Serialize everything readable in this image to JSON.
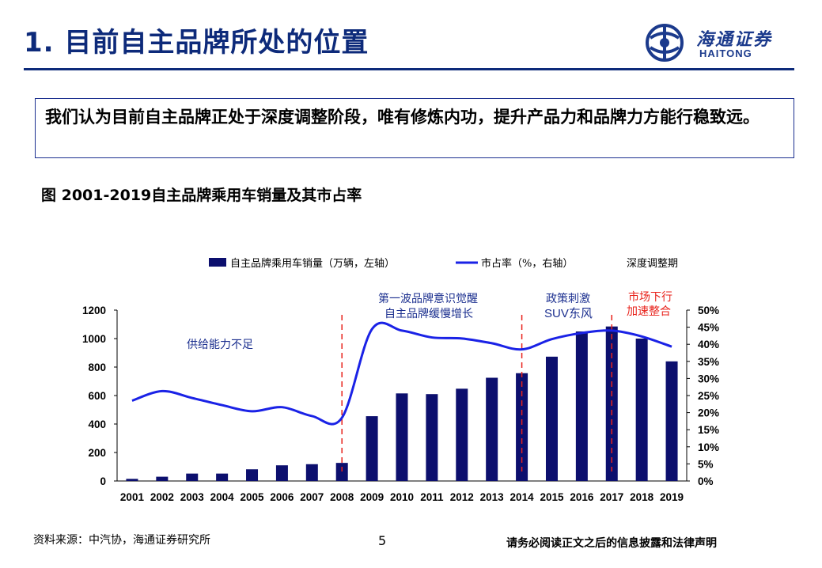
{
  "header": {
    "title": "1. 目前自主品牌所处的位置",
    "logo_text": "海通证券",
    "logo_en": "HAITONG"
  },
  "summary": "我们认为目前自主品牌正处于深度调整阶段，唯有修炼内功，提升产品力和品牌力方能行稳致远。",
  "figure_title": "图 2001-2019自主品牌乘用车销量及其市占率",
  "chart_data": {
    "type": "bar",
    "categories": [
      "2001",
      "2002",
      "2003",
      "2004",
      "2005",
      "2006",
      "2007",
      "2008",
      "2009",
      "2010",
      "2011",
      "2012",
      "2013",
      "2014",
      "2015",
      "2016",
      "2017",
      "2018",
      "2019"
    ],
    "series": [
      {
        "name": "自主品牌乘用车销量（万辆，左轴）",
        "type": "bar",
        "axis": "left",
        "values": [
          15,
          30,
          52,
          52,
          82,
          110,
          118,
          127,
          455,
          615,
          610,
          648,
          725,
          757,
          873,
          1050,
          1085,
          1000,
          840
        ]
      },
      {
        "name": "市占率（%，右轴）",
        "type": "line",
        "axis": "right",
        "values": [
          23.5,
          26.3,
          24.3,
          22.2,
          20.4,
          21.6,
          19.0,
          18.5,
          44.4,
          44.0,
          42.0,
          41.7,
          40.3,
          38.5,
          41.5,
          43.3,
          44.0,
          42.3,
          39.3
        ]
      }
    ],
    "ylim": [
      0,
      1200
    ],
    "y_ticks": [
      0,
      200,
      400,
      600,
      800,
      1000,
      1200
    ],
    "y2lim": [
      0,
      50
    ],
    "y2_ticks": [
      "0%",
      "5%",
      "10%",
      "15%",
      "20%",
      "25%",
      "30%",
      "35%",
      "40%",
      "45%",
      "50%"
    ],
    "legend": {
      "placement": "top",
      "extra": "深度调整期"
    },
    "annotations": [
      {
        "text": "供给能力不足"
      },
      {
        "lines": [
          "第一波品牌意识觉醒",
          "自主品牌缓慢增长"
        ]
      },
      {
        "lines": [
          "政策刺激",
          "SUV东风"
        ]
      },
      {
        "lines": [
          "市场下行",
          "加速整合"
        ],
        "color": "#e8221b"
      }
    ],
    "dividers_at": [
      "2008",
      "2014",
      "2017"
    ],
    "colors": {
      "bar": "#0c0f6e",
      "line": "#1a22e6",
      "divider": "#e8221b"
    }
  },
  "footer": {
    "source": "资料来源：中汽协，海通证券研究所",
    "page": "5",
    "disclaimer": "请务必阅读正文之后的信息披露和法律声明"
  }
}
